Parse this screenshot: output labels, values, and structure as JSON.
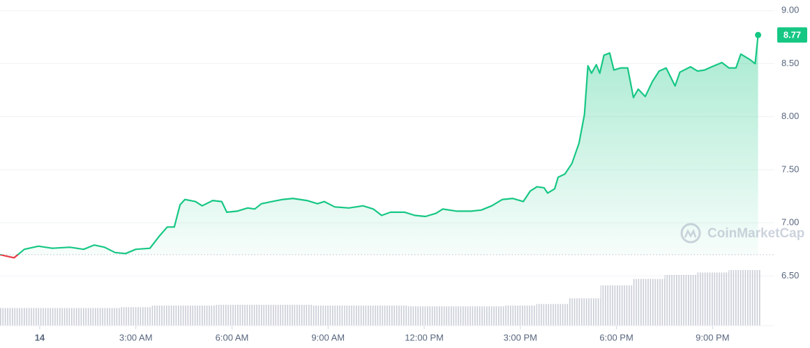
{
  "chart_data": {
    "type": "line",
    "watermark": "CoinMarketCap",
    "x": [
      -1.24,
      -0.8,
      -0.48,
      -0.04,
      0.39,
      0.94,
      1.37,
      1.7,
      2.02,
      2.35,
      2.68,
      3.0,
      3.44,
      3.72,
      3.98,
      4.2,
      4.38,
      4.53,
      4.86,
      5.07,
      5.4,
      5.68,
      5.84,
      6.16,
      6.49,
      6.71,
      6.92,
      7.25,
      7.58,
      7.9,
      8.34,
      8.67,
      8.88,
      9.21,
      9.65,
      10.09,
      10.41,
      10.67,
      10.95,
      11.39,
      11.71,
      12.04,
      12.37,
      12.58,
      13.02,
      13.46,
      13.78,
      14.11,
      14.44,
      14.76,
      15.09,
      15.31,
      15.52,
      15.74,
      15.85,
      16.07,
      16.18,
      16.39,
      16.61,
      16.83,
      17.0,
      17.11,
      17.22,
      17.37,
      17.48,
      17.61,
      17.79,
      17.92,
      18.14,
      18.35,
      18.53,
      18.68,
      18.9,
      19.12,
      19.33,
      19.55,
      19.83,
      19.98,
      20.31,
      20.53,
      20.75,
      20.97,
      21.29,
      21.51,
      21.73,
      21.88,
      22.16,
      22.33,
      22.42
    ],
    "series": [
      {
        "color": "#16c784",
        "down_color": "#ea3943",
        "values": [
          6.7,
          6.67,
          6.75,
          6.78,
          6.76,
          6.77,
          6.75,
          6.79,
          6.77,
          6.72,
          6.71,
          6.75,
          6.76,
          6.87,
          6.96,
          6.96,
          7.17,
          7.22,
          7.2,
          7.16,
          7.21,
          7.2,
          7.1,
          7.11,
          7.14,
          7.13,
          7.18,
          7.2,
          7.22,
          7.23,
          7.21,
          7.18,
          7.2,
          7.15,
          7.14,
          7.16,
          7.13,
          7.07,
          7.1,
          7.1,
          7.07,
          7.06,
          7.09,
          7.13,
          7.11,
          7.11,
          7.12,
          7.16,
          7.22,
          7.23,
          7.2,
          7.3,
          7.34,
          7.33,
          7.28,
          7.32,
          7.43,
          7.46,
          7.56,
          7.75,
          8.02,
          8.48,
          8.41,
          8.49,
          8.41,
          8.58,
          8.6,
          8.44,
          8.46,
          8.46,
          8.18,
          8.26,
          8.19,
          8.33,
          8.43,
          8.46,
          8.29,
          8.42,
          8.47,
          8.43,
          8.44,
          8.47,
          8.51,
          8.46,
          8.46,
          8.59,
          8.54,
          8.5,
          8.77
        ]
      }
    ],
    "reference_line": 6.7,
    "volume": {
      "x": [
        -1,
        0,
        1,
        2,
        3,
        4,
        5,
        6,
        7,
        8,
        9,
        10,
        11,
        12,
        13,
        14,
        15,
        16,
        17,
        18,
        19,
        20,
        21,
        22
      ],
      "values": [
        22,
        22,
        22,
        22,
        23,
        25,
        25,
        26,
        26,
        26,
        25,
        25,
        25,
        24,
        24,
        24,
        25,
        27,
        34,
        50,
        58,
        63,
        66,
        69
      ]
    },
    "xlim": [
      -1.24,
      22.93
    ],
    "ylim": [
      6.03,
      9.1
    ],
    "xticks": [
      {
        "value": 0,
        "label": "14"
      },
      {
        "value": 3,
        "label": "3:00 AM"
      },
      {
        "value": 6,
        "label": "6:00 AM"
      },
      {
        "value": 9,
        "label": "9:00 AM"
      },
      {
        "value": 12,
        "label": "12:00 PM"
      },
      {
        "value": 15,
        "label": "3:00 PM"
      },
      {
        "value": 18,
        "label": "6:00 PM"
      },
      {
        "value": 21,
        "label": "9:00 PM"
      }
    ],
    "yticks": [
      {
        "value": 6.5,
        "label": "6.50"
      },
      {
        "value": 7,
        "label": "7.00"
      },
      {
        "value": 7.5,
        "label": "7.50"
      },
      {
        "value": 8,
        "label": "8.00"
      },
      {
        "value": 8.5,
        "label": "8.50"
      },
      {
        "value": 9,
        "label": "9.00"
      }
    ],
    "grid": true
  }
}
